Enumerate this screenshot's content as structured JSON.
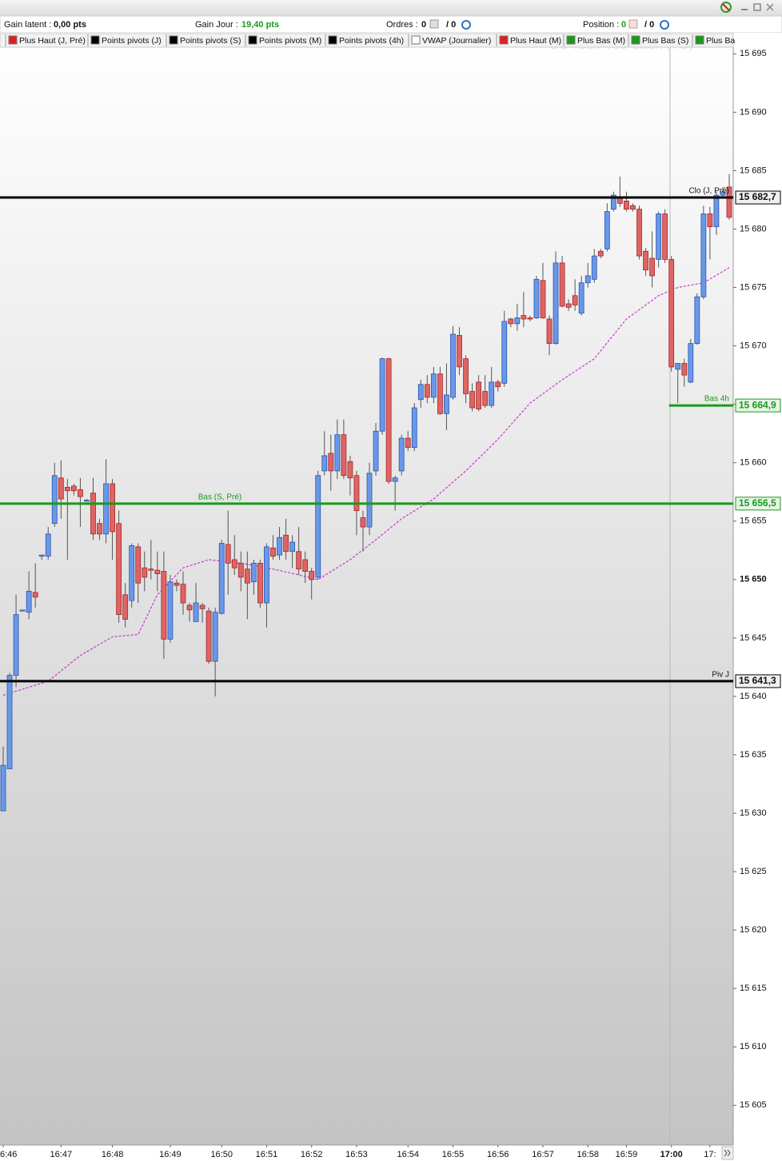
{
  "toolbar": {
    "gain_latent_label": "Gain latent :",
    "gain_latent": "0,00 pts",
    "gain_jour_label": "Gain Jour :",
    "gain_jour": "19,40 pts",
    "ordres_label": "Ordres :",
    "ordres": "0",
    "ordres_total": "/ 0",
    "position_label": "Position :",
    "position": "0",
    "position_total": "/ 0"
  },
  "legend": [
    {
      "name": "Plus Haut (J, Pré)",
      "color": "#e02020"
    },
    {
      "name": "Points pivots (J)",
      "color": "#000000"
    },
    {
      "name": "Points pivots (S)",
      "color": "#000000"
    },
    {
      "name": "Points pivots (M)",
      "color": "#000000"
    },
    {
      "name": "Points pivots (4h)",
      "color": "#000000"
    },
    {
      "name": "VWAP (Journalier)",
      "color": "#ffffff"
    },
    {
      "name": "Plus Haut (M)",
      "color": "#e02020"
    },
    {
      "name": "Plus Bas (M)",
      "color": "#1a9a1a"
    },
    {
      "name": "Plus Bas (S)",
      "color": "#1a9a1a"
    },
    {
      "name": "Plus Ba",
      "color": "#1a9a1a"
    }
  ],
  "chart_data": {
    "type": "candlestick",
    "watermark": "CC Tech You Cash (TC)",
    "up_color": "#6a98e8",
    "down_color": "#e06464",
    "categories": [
      "6:46",
      null,
      null,
      null,
      null,
      null,
      null,
      null,
      null,
      "16:47",
      null,
      null,
      null,
      null,
      null,
      null,
      null,
      "16:48",
      null,
      null,
      null,
      null,
      null,
      null,
      null,
      null,
      "16:49",
      null,
      null,
      null,
      null,
      null,
      null,
      null,
      "16:50",
      null,
      null,
      null,
      null,
      null,
      null,
      "16:51",
      null,
      null,
      null,
      null,
      null,
      null,
      "16:52",
      null,
      null,
      null,
      null,
      null,
      null,
      "16:53",
      null,
      null,
      null,
      null,
      null,
      null,
      null,
      "16:54",
      null,
      null,
      null,
      null,
      null,
      null,
      "16:55",
      null,
      null,
      null,
      null,
      null,
      null,
      "16:56",
      null,
      null,
      null,
      null,
      null,
      null,
      "16:57",
      null,
      null,
      null,
      null,
      null,
      null,
      "16:58",
      null,
      null,
      null,
      null,
      null,
      "16:59",
      null,
      null,
      null,
      null,
      null,
      null,
      "17:00",
      null,
      null,
      null,
      null,
      null,
      "17:",
      null,
      null,
      null
    ],
    "open": [
      15630.2,
      15633.8,
      15641.8,
      15647.3,
      15647.2,
      15648.9,
      15652.0,
      15652.0,
      15654.8,
      15658.7,
      15657.9,
      15658.0,
      15657.7,
      15656.7,
      15657.4,
      15654.8,
      15653.9,
      15658.2,
      15654.8,
      15648.7,
      15648.2,
      15652.8,
      15651.0,
      15650.9,
      15650.8,
      15650.7,
      15644.9,
      15649.7,
      15649.6,
      15647.8,
      15646.4,
      15647.8,
      15647.3,
      15643.0,
      15647.1,
      15653.0,
      15651.7,
      15651.4,
      15650.9,
      15649.8,
      15651.4,
      15648.0,
      15652.7,
      15652.1,
      15653.8,
      15652.4,
      15652.4,
      15651.7,
      15650.7,
      15650.2,
      15659.3,
      15660.8,
      15659.3,
      15662.4,
      15660.1,
      15658.9,
      15655.3,
      15654.5,
      15659.3,
      15662.7,
      15668.9,
      15658.4,
      15659.3,
      15662.1,
      15661.3,
      15665.4,
      15666.7,
      15665.6,
      15667.6,
      15664.2,
      15665.6,
      15670.9,
      15668.9,
      15666.1,
      15666.9,
      15666.1,
      15664.9,
      15666.9,
      15666.8,
      15672.3,
      15671.9,
      15672.6,
      15672.4,
      15672.4,
      15675.6,
      15672.3,
      15670.2,
      15677.1,
      15673.6,
      15674.3,
      15672.8,
      15675.4,
      15675.7,
      15678.1,
      15678.3,
      15681.7,
      15682.7,
      15682.4,
      15682.0,
      15681.7,
      15678.1,
      15677.5,
      15677.4,
      15681.3,
      15677.4,
      15668.0,
      15668.5,
      15666.9,
      15670.2,
      15674.2,
      15681.3,
      15680.2,
      15682.9,
      15683.6
    ],
    "high": [
      15635.7,
      15642.0,
      15648.7,
      15647.4,
      15650.7,
      15651.4,
      15652.1,
      15654.5,
      15660.0,
      15660.2,
      15658.6,
      15658.2,
      15658.7,
      15656.9,
      15658.7,
      15655.2,
      15660.3,
      15658.6,
      15655.9,
      15649.7,
      15653.1,
      15653.1,
      15652.4,
      15653.4,
      15652.4,
      15652.4,
      15650.4,
      15650.0,
      15650.7,
      15648.0,
      15649.7,
      15648.0,
      15647.6,
      15647.6,
      15653.4,
      15655.9,
      15653.8,
      15652.4,
      15652.4,
      15651.7,
      15651.7,
      15653.1,
      15653.8,
      15654.5,
      15655.2,
      15653.8,
      15654.5,
      15652.4,
      15651.0,
      15659.3,
      15662.7,
      15662.4,
      15663.7,
      15663.7,
      15660.6,
      15659.3,
      15655.9,
      15660.0,
      15663.4,
      15669.0,
      15669.0,
      15658.9,
      15662.4,
      15662.7,
      15665.1,
      15667.1,
      15667.5,
      15668.2,
      15668.2,
      15668.5,
      15671.7,
      15671.6,
      15669.2,
      15666.8,
      15667.5,
      15667.5,
      15668.2,
      15667.1,
      15673.0,
      15672.4,
      15673.6,
      15674.6,
      15672.6,
      15676.0,
      15677.1,
      15672.6,
      15678.1,
      15677.7,
      15674.0,
      15675.7,
      15676.0,
      15677.1,
      15678.3,
      15678.3,
      15682.2,
      15683.2,
      15684.5,
      15683.2,
      15682.2,
      15682.0,
      15678.4,
      15679.8,
      15681.5,
      15681.7,
      15677.7,
      15668.5,
      15668.9,
      15670.6,
      15674.5,
      15682.0,
      15681.9,
      15683.2,
      15683.6,
      15684.7
    ],
    "low": [
      15630.2,
      15633.8,
      15640.8,
      15647.3,
      15646.6,
      15647.6,
      15651.7,
      15651.7,
      15654.5,
      15655.2,
      15651.7,
      15657.2,
      15654.5,
      15656.7,
      15653.4,
      15653.4,
      15653.1,
      15651.7,
      15646.3,
      15645.9,
      15647.6,
      15648.0,
      15649.0,
      15650.0,
      15649.0,
      15643.2,
      15644.6,
      15649.0,
      15647.0,
      15646.4,
      15646.4,
      15646.3,
      15642.8,
      15640.0,
      15647.0,
      15648.7,
      15650.4,
      15649.0,
      15646.6,
      15648.7,
      15647.6,
      15645.9,
      15651.7,
      15651.7,
      15651.7,
      15651.0,
      15650.4,
      15649.7,
      15648.3,
      15650.0,
      15658.9,
      15657.6,
      15658.6,
      15658.6,
      15657.2,
      15653.8,
      15652.4,
      15653.8,
      15658.9,
      15662.4,
      15658.2,
      15655.9,
      15658.9,
      15661.0,
      15661.0,
      15664.7,
      15665.1,
      15665.1,
      15664.1,
      15662.8,
      15665.4,
      15667.5,
      15665.1,
      15664.4,
      15664.4,
      15664.7,
      15664.7,
      15666.1,
      15666.5,
      15671.6,
      15671.3,
      15671.6,
      15672.1,
      15672.3,
      15672.3,
      15669.2,
      15670.1,
      15673.3,
      15673.0,
      15673.0,
      15672.6,
      15675.0,
      15675.4,
      15677.5,
      15678.1,
      15681.5,
      15681.9,
      15681.5,
      15681.5,
      15677.4,
      15676.0,
      15675.0,
      15676.7,
      15677.1,
      15667.8,
      15665.1,
      15666.5,
      15666.8,
      15670.1,
      15674.0,
      15677.4,
      15679.5,
      15682.7,
      15680.8
    ],
    "close": [
      15634.1,
      15641.8,
      15647.0,
      15647.4,
      15649.0,
      15648.5,
      15652.1,
      15653.9,
      15658.9,
      15656.9,
      15657.6,
      15657.6,
      15657.1,
      15656.8,
      15653.9,
      15653.9,
      15658.2,
      15654.1,
      15647.0,
      15646.6,
      15652.9,
      15649.7,
      15650.2,
      15650.8,
      15650.5,
      15644.9,
      15649.8,
      15649.5,
      15648.0,
      15647.4,
      15648.0,
      15647.5,
      15643.0,
      15647.2,
      15653.1,
      15651.4,
      15651.0,
      15650.2,
      15649.7,
      15651.4,
      15648.0,
      15652.8,
      15652.0,
      15653.6,
      15652.4,
      15653.2,
      15650.9,
      15650.7,
      15650.0,
      15658.9,
      15660.6,
      15659.3,
      15662.4,
      15658.9,
      15658.7,
      15655.9,
      15654.5,
      15659.1,
      15662.7,
      15668.9,
      15658.4,
      15658.7,
      15662.1,
      15661.3,
      15664.7,
      15666.7,
      15665.6,
      15667.6,
      15664.2,
      15665.8,
      15671.0,
      15668.2,
      15665.9,
      15664.7,
      15664.6,
      15664.9,
      15666.9,
      15666.5,
      15672.1,
      15671.9,
      15672.4,
      15672.3,
      15672.3,
      15675.7,
      15672.4,
      15670.2,
      15677.1,
      15673.4,
      15673.3,
      15673.5,
      15675.4,
      15676.0,
      15677.7,
      15677.7,
      15681.5,
      15682.9,
      15682.2,
      15681.7,
      15681.7,
      15677.7,
      15676.5,
      15676.0,
      15681.3,
      15677.4,
      15668.2,
      15668.5,
      15667.5,
      15670.2,
      15674.2,
      15681.3,
      15680.2,
      15682.9,
      15683.2,
      15681.0
    ],
    "vwap": {
      "color": "#cc33cc",
      "x": [
        0,
        7,
        12,
        17,
        21,
        24,
        28,
        32,
        37,
        42,
        46,
        49,
        54,
        58,
        62,
        67,
        72,
        77,
        82,
        87,
        92,
        97,
        102,
        105,
        109,
        113
      ],
      "values": [
        15640.1,
        15641.3,
        15643.5,
        15645.1,
        15645.3,
        15648.7,
        15651.0,
        15651.7,
        15651.4,
        15650.9,
        15650.4,
        15650.0,
        15651.7,
        15653.4,
        15655.2,
        15656.9,
        15659.3,
        15662.0,
        15665.1,
        15667.1,
        15668.9,
        15672.3,
        15674.3,
        15675.0,
        15675.4,
        15676.7
      ]
    },
    "levels": [
      {
        "name": "Clo (J, Pré)",
        "value": 15682.7,
        "value_label": "15 682,7",
        "color": "#000000"
      },
      {
        "name": "Bas (S, Pré)",
        "value": 15656.5,
        "value_label": "15 656,5",
        "color": "#1a9a1a"
      },
      {
        "name": "Piv J",
        "value": 15641.3,
        "value_label": "15 641,3",
        "color": "#000000"
      },
      {
        "name": "Bas 4h",
        "value": 15664.9,
        "value_label": "15 664,9",
        "color": "#1a9a1a",
        "start_index": 104
      }
    ],
    "ylim": [
      15601.6,
      15696.8
    ],
    "yticks": [
      {
        "value": 15695,
        "label": "15 695"
      },
      {
        "value": 15690,
        "label": "15 690"
      },
      {
        "value": 15685,
        "label": "15 685"
      },
      {
        "value": 15680,
        "label": "15 680"
      },
      {
        "value": 15675,
        "label": "15 675"
      },
      {
        "value": 15670,
        "label": "15 670"
      },
      {
        "value": 15665,
        "label": "15 665"
      },
      {
        "value": 15660,
        "label": "15 660"
      },
      {
        "value": 15655,
        "label": "15 655"
      },
      {
        "value": 15650,
        "label": "15 650"
      },
      {
        "value": 15645,
        "label": "15 645"
      },
      {
        "value": 15640,
        "label": "15 640"
      },
      {
        "value": 15635,
        "label": "15 635"
      },
      {
        "value": 15630,
        "label": "15 630"
      },
      {
        "value": 15625,
        "label": "15 625"
      },
      {
        "value": 15620,
        "label": "15 620"
      },
      {
        "value": 15615,
        "label": "15 615"
      },
      {
        "value": 15610,
        "label": "15 610"
      },
      {
        "value": 15605,
        "label": "15 605"
      }
    ]
  }
}
